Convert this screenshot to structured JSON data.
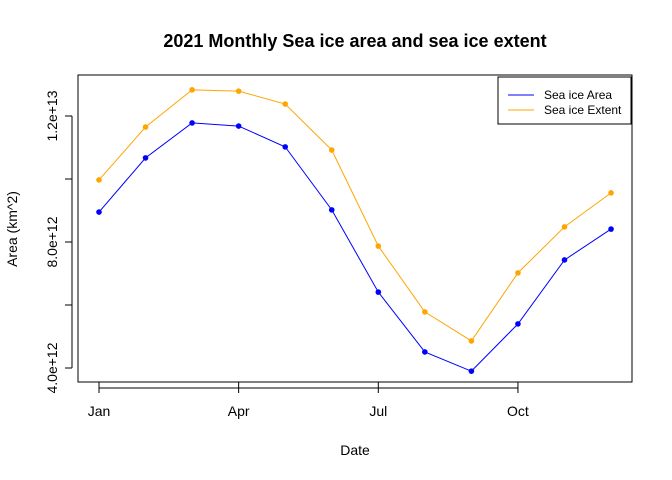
{
  "chart_data": {
    "type": "line",
    "title": "2021 Monthly Sea ice area and sea ice extent",
    "xlabel": "Date",
    "ylabel": "Area (km^2)",
    "x": [
      "Jan",
      "Feb",
      "Mar",
      "Apr",
      "May",
      "Jun",
      "Jul",
      "Aug",
      "Sep",
      "Oct",
      "Nov",
      "Dec"
    ],
    "x_ticks": [
      {
        "label": "Jan",
        "index": 0
      },
      {
        "label": "Apr",
        "index": 3
      },
      {
        "label": "Jul",
        "index": 6
      },
      {
        "label": "Oct",
        "index": 9
      }
    ],
    "y_ticks": [
      {
        "value": 4000000000000.0,
        "label": "4.0e+12"
      },
      {
        "value": 6000000000000.0,
        "label": ""
      },
      {
        "value": 8000000000000.0,
        "label": "8.0e+12"
      },
      {
        "value": 10000000000000.0,
        "label": ""
      },
      {
        "value": 12000000000000.0,
        "label": "1.2e+13"
      }
    ],
    "ylim": [
      3600000000000.0,
      13500000000000.0
    ],
    "grid": false,
    "legend_position": "top-right",
    "series": [
      {
        "name": "Sea ice Area",
        "color": "#0000ff",
        "values": [
          8950000000000.0,
          10670000000000.0,
          11780000000000.0,
          11680000000000.0,
          11020000000000.0,
          9020000000000.0,
          6410000000000.0,
          4510000000000.0,
          3900000000000.0,
          5400000000000.0,
          7430000000000.0,
          8410000000000.0
        ]
      },
      {
        "name": "Sea ice Extent",
        "color": "#ffa500",
        "values": [
          9970000000000.0,
          11650000000000.0,
          12830000000000.0,
          12790000000000.0,
          12380000000000.0,
          10920000000000.0,
          7870000000000.0,
          5780000000000.0,
          4860000000000.0,
          7020000000000.0,
          8480000000000.0,
          9560000000000.0
        ]
      }
    ]
  }
}
